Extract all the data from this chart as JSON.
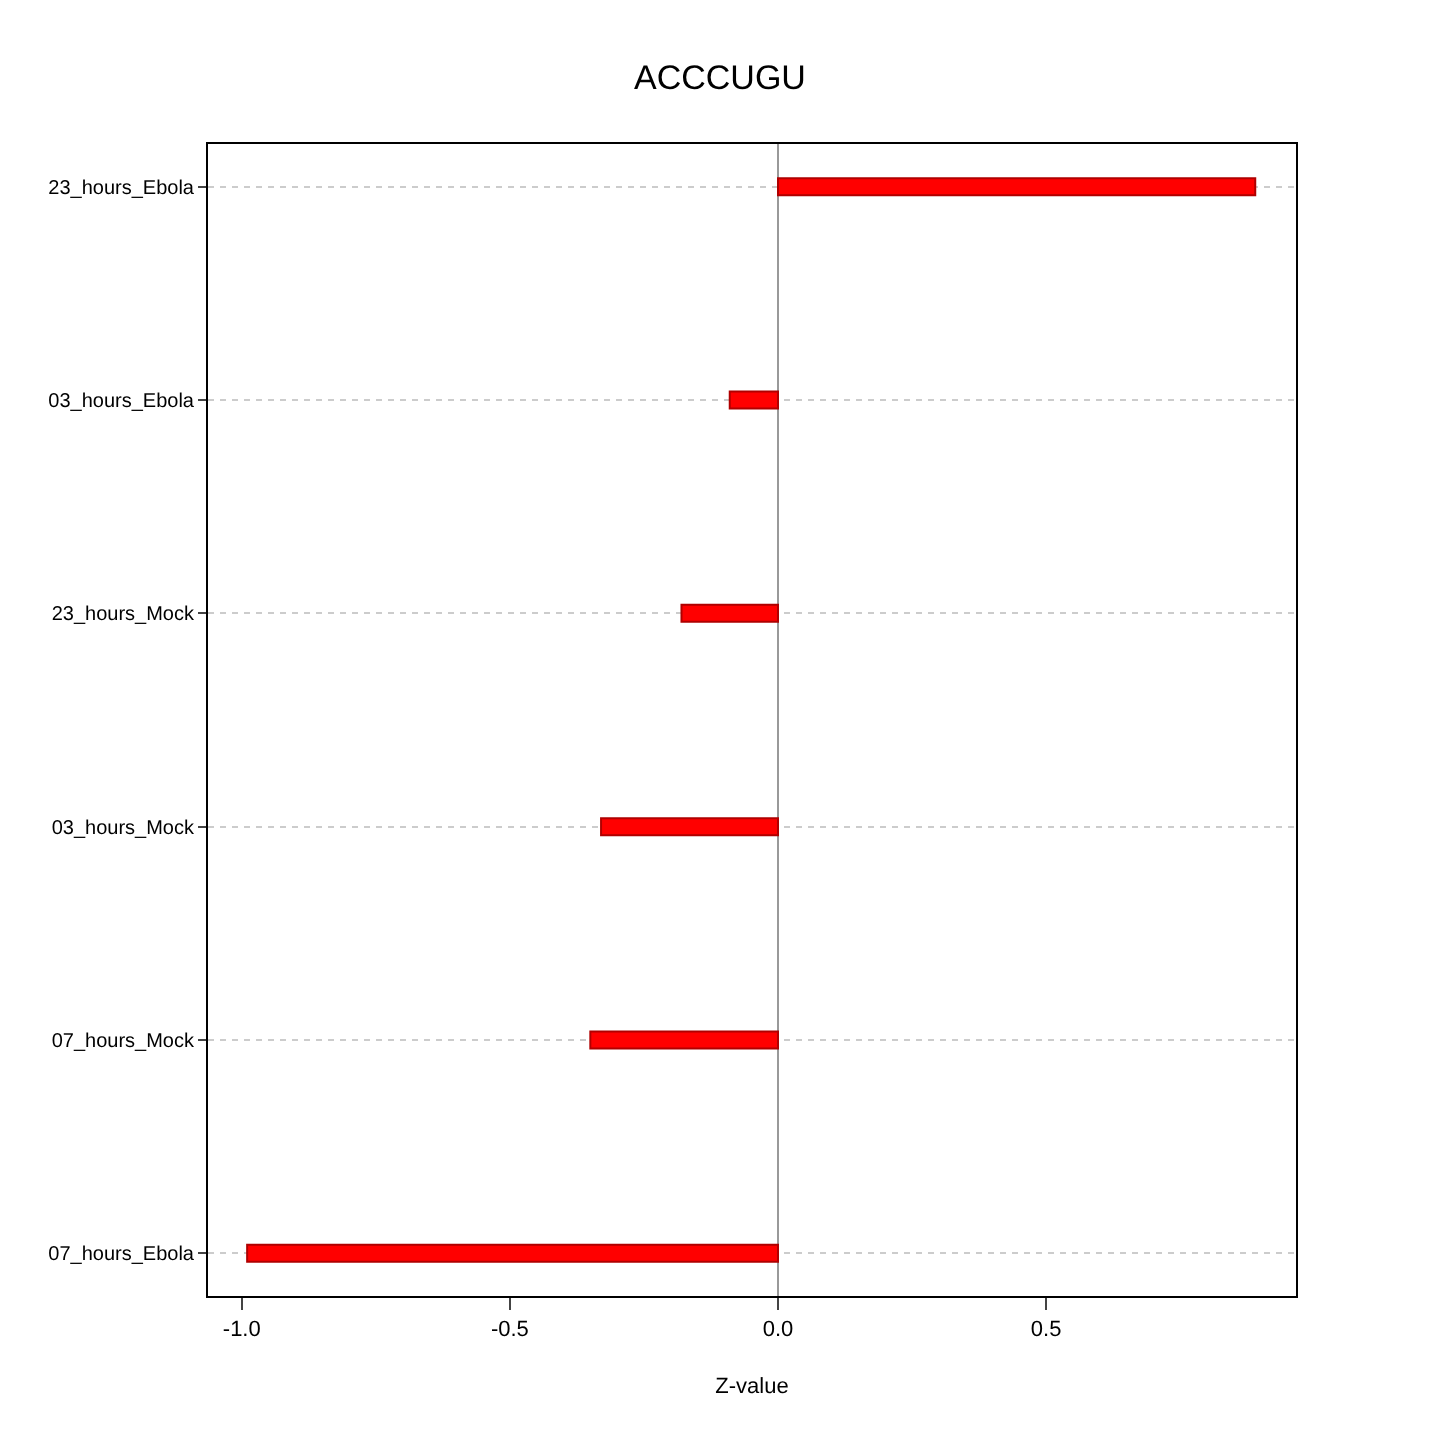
{
  "chart_data": {
    "type": "bar",
    "orientation": "horizontal",
    "title": "ACCCUGU",
    "xlabel": "Z-value",
    "categories": [
      "23_hours_Ebola",
      "03_hours_Ebola",
      "23_hours_Mock",
      "03_hours_Mock",
      "07_hours_Mock",
      "07_hours_Ebola"
    ],
    "values": [
      0.89,
      -0.09,
      -0.18,
      -0.33,
      -0.35,
      -0.99
    ],
    "color": "#ff0000",
    "xlim": [
      -1.063,
      0.966
    ],
    "xticks": [
      {
        "value": -1.0,
        "label": "-1.0"
      },
      {
        "value": -0.5,
        "label": "-0.5"
      },
      {
        "value": 0.0,
        "label": "0.0"
      },
      {
        "value": 0.5,
        "label": "0.5"
      }
    ],
    "ref_lines": [
      {
        "axis": "x",
        "value": 0,
        "color": "#999999"
      }
    ],
    "grid": "y"
  }
}
